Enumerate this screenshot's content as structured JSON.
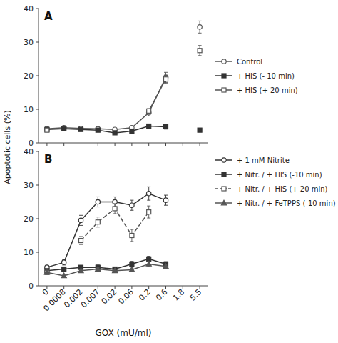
{
  "chart_data": [
    {
      "type": "line",
      "title": "A",
      "ylabel": "Apoptotic cells  (%)",
      "categories": [
        "0",
        "0.0008",
        "0.002",
        "0.007",
        "0.02",
        "0.06",
        "0.2",
        "0.6",
        "1.8",
        "5.5"
      ],
      "ylim": [
        0,
        40
      ],
      "yticks": [
        0,
        10,
        20,
        30,
        40
      ],
      "tick_labels": "y",
      "legend": "right",
      "series": [
        {
          "name": "Control",
          "color": "#555555",
          "marker": "circle-open",
          "line_style": "solid",
          "values": [
            4.2,
            4.5,
            4.3,
            4.2,
            4.0,
            4.5,
            9.0,
            19.5,
            null,
            34.5
          ],
          "errors": [
            0.5,
            0.4,
            0.4,
            0.5,
            0.4,
            0.5,
            1.0,
            1.5,
            null,
            1.8
          ]
        },
        {
          "name": "+ HIS (- 10 min)",
          "color": "#333333",
          "marker": "square",
          "line_style": "solid",
          "values": [
            4.0,
            4.2,
            4.0,
            3.8,
            3.0,
            3.5,
            5.0,
            4.8,
            null,
            3.8
          ],
          "errors": [
            0.5,
            0.4,
            0.4,
            0.5,
            0.4,
            0.5,
            0.5,
            0.7,
            null,
            0.5
          ]
        },
        {
          "name": "+ HIS (+ 20 min)",
          "color": "#555555",
          "marker": "square-open",
          "line_style": "solid",
          "values": [
            3.8,
            null,
            null,
            null,
            null,
            null,
            9.5,
            19.0,
            null,
            27.5
          ],
          "errors": [
            0.5,
            null,
            null,
            null,
            null,
            null,
            0.7,
            1.2,
            null,
            1.5
          ]
        }
      ]
    },
    {
      "type": "line",
      "title": "B",
      "xlabel": "GOX  (mU/ml)",
      "categories": [
        "0",
        "0.0008",
        "0.002",
        "0.007",
        "0.02",
        "0.06",
        "0.2",
        "0.6",
        "1.8",
        "5.5"
      ],
      "ylim": [
        0,
        40
      ],
      "yticks": [
        0,
        10,
        20,
        30,
        40
      ],
      "legend": "right",
      "series": [
        {
          "name": "+ 1 mM Nitrite",
          "color": "#333333",
          "marker": "circle-open",
          "line_style": "solid",
          "values": [
            5.5,
            7.0,
            19.5,
            25.0,
            25.0,
            24.0,
            27.5,
            25.5,
            null,
            null
          ],
          "errors": [
            0.6,
            0.8,
            1.5,
            1.5,
            1.5,
            1.5,
            2.0,
            1.5,
            null,
            null
          ]
        },
        {
          "name": "+ Nitr. / + HIS (-10 min)",
          "color": "#333333",
          "marker": "square",
          "line_style": "solid",
          "values": [
            4.5,
            5.0,
            5.5,
            5.5,
            5.0,
            6.5,
            8.0,
            6.5,
            null,
            null
          ],
          "errors": [
            0.5,
            0.5,
            0.5,
            0.7,
            0.5,
            0.8,
            0.8,
            0.7,
            null,
            null
          ]
        },
        {
          "name": "+ Nitr. / + HIS (+ 20 min)",
          "color": "#555555",
          "marker": "square-open",
          "line_style": "dashed",
          "values": [
            4.0,
            null,
            13.5,
            19.0,
            23.0,
            15.0,
            22.0,
            null,
            null,
            null
          ],
          "errors": [
            0.5,
            null,
            1.2,
            1.5,
            1.5,
            1.8,
            1.8,
            null,
            null,
            null
          ]
        },
        {
          "name": "+ Nitr. / + FeTPPS (-10 min)",
          "color": "#555555",
          "marker": "triangle",
          "line_style": "solid",
          "values": [
            4.0,
            3.0,
            4.5,
            5.0,
            4.5,
            4.8,
            6.5,
            5.8,
            null,
            null
          ],
          "errors": [
            0.5,
            0.4,
            0.5,
            0.5,
            0.4,
            0.5,
            0.7,
            0.6,
            null,
            null
          ]
        }
      ]
    }
  ]
}
